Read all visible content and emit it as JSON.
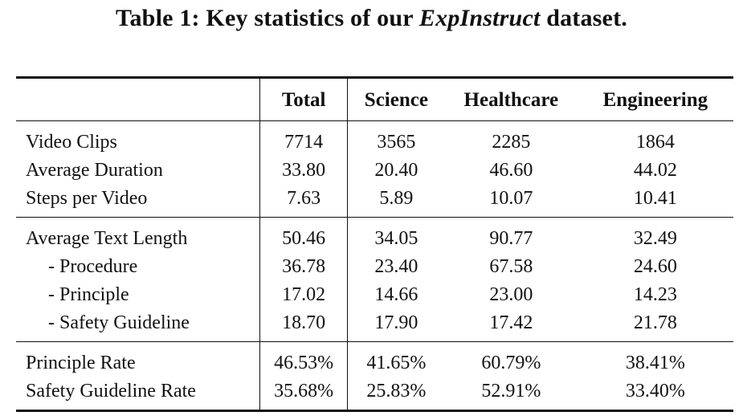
{
  "caption": {
    "prefix": "Table 1:  Key statistics of our ",
    "dataset_name": "ExpInstruct",
    "suffix": " dataset."
  },
  "table": {
    "headers": [
      "",
      "Total",
      "Science",
      "Healthcare",
      "Engineering"
    ],
    "groups": [
      {
        "rows": [
          {
            "label": "Video Clips",
            "indent": false,
            "values": [
              "7714",
              "3565",
              "2285",
              "1864"
            ]
          },
          {
            "label": "Average Duration",
            "indent": false,
            "values": [
              "33.80",
              "20.40",
              "46.60",
              "44.02"
            ]
          },
          {
            "label": "Steps per Video",
            "indent": false,
            "values": [
              "7.63",
              "5.89",
              "10.07",
              "10.41"
            ]
          }
        ]
      },
      {
        "rows": [
          {
            "label": "Average Text Length",
            "indent": false,
            "values": [
              "50.46",
              "34.05",
              "90.77",
              "32.49"
            ]
          },
          {
            "label": "- Procedure",
            "indent": true,
            "values": [
              "36.78",
              "23.40",
              "67.58",
              "24.60"
            ]
          },
          {
            "label": "- Principle",
            "indent": true,
            "values": [
              "17.02",
              "14.66",
              "23.00",
              "14.23"
            ]
          },
          {
            "label": "- Safety Guideline",
            "indent": true,
            "values": [
              "18.70",
              "17.90",
              "17.42",
              "21.78"
            ]
          }
        ]
      },
      {
        "rows": [
          {
            "label": "Principle Rate",
            "indent": false,
            "values": [
              "46.53%",
              "41.65%",
              "60.79%",
              "38.41%"
            ]
          },
          {
            "label": "Safety Guideline Rate",
            "indent": false,
            "values": [
              "35.68%",
              "25.83%",
              "52.91%",
              "33.40%"
            ]
          }
        ]
      }
    ]
  }
}
